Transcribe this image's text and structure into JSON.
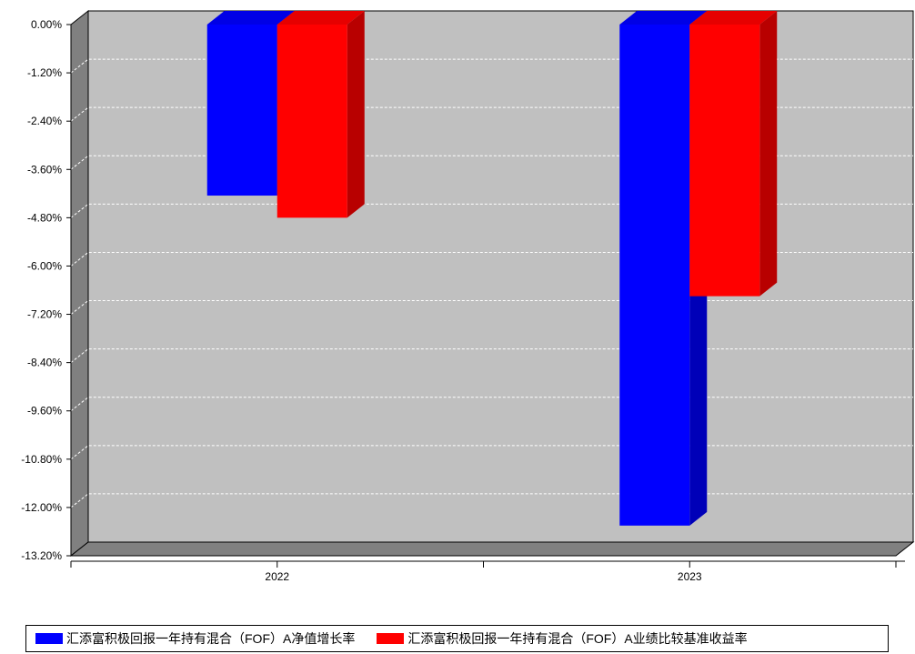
{
  "chart_data": {
    "type": "bar",
    "categories": [
      "2022",
      "2023"
    ],
    "series": [
      {
        "name": "汇添富积极回报一年持有混合（FOF）A净值增长率",
        "values": [
          -4.25,
          -12.45
        ],
        "color": "#0000ff"
      },
      {
        "name": "汇添富积极回报一年持有混合（FOF）A业绩比较基准收益率",
        "values": [
          -4.8,
          -6.75
        ],
        "color": "#ff0000"
      }
    ],
    "ylim": [
      -13.2,
      0
    ],
    "yticks": [
      "0.00%",
      "-1.20%",
      "-2.40%",
      "-3.60%",
      "-4.80%",
      "-6.00%",
      "-7.20%",
      "-8.40%",
      "-9.60%",
      "-10.80%",
      "-12.00%",
      "-13.20%"
    ],
    "grid": true,
    "legend_position": "bottom",
    "plot_background": "#c0c0c0"
  }
}
